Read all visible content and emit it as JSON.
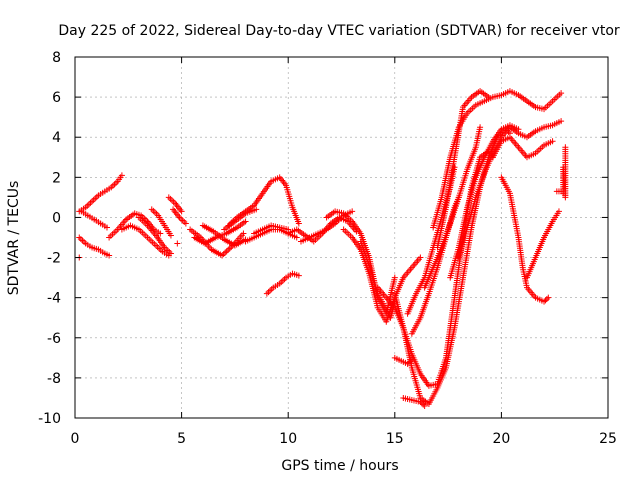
{
  "chart_data": {
    "type": "scatter",
    "title": "Day 225 of 2022, Sidereal Day-to-day VTEC variation (SDTVAR) for receiver vtor",
    "xlabel": "GPS time / hours",
    "ylabel": "SDTVAR / TECUs",
    "xlim": [
      0,
      25
    ],
    "ylim": [
      -10,
      8
    ],
    "xticks": [
      "0",
      "5",
      "10",
      "15",
      "20",
      "25"
    ],
    "yticks": [
      "-10",
      "-8",
      "-6",
      "-4",
      "-2",
      "0",
      "2",
      "4",
      "6",
      "8"
    ],
    "grid": true,
    "marker": "+",
    "color": "#ff0000",
    "series": [
      {
        "x": [
          0.2,
          0.5,
          0.8,
          1.1,
          1.4,
          1.7,
          2.0,
          2.2
        ],
        "y": [
          0.3,
          0.5,
          0.8,
          1.1,
          1.3,
          1.5,
          1.8,
          2.1
        ]
      },
      {
        "x": [
          0.2,
          0.5,
          0.8,
          1.1,
          1.4,
          1.6
        ],
        "y": [
          -1.0,
          -1.3,
          -1.5,
          -1.6,
          -1.8,
          -1.9
        ]
      },
      {
        "x": [
          0.2
        ],
        "y": [
          -2.0
        ]
      },
      {
        "x": [
          0.3,
          0.6,
          0.9,
          1.2,
          1.5
        ],
        "y": [
          0.3,
          0.1,
          -0.1,
          -0.3,
          -0.5
        ]
      },
      {
        "x": [
          1.6,
          2.0,
          2.4,
          2.8,
          3.1,
          3.4,
          3.7,
          4.0
        ],
        "y": [
          -1.0,
          -0.6,
          -0.1,
          0.2,
          0.1,
          -0.2,
          -0.6,
          -0.8
        ]
      },
      {
        "x": [
          2.2,
          2.6,
          3.0,
          3.4,
          3.8,
          4.1,
          4.4
        ],
        "y": [
          -0.6,
          -0.4,
          -0.6,
          -1.0,
          -1.4,
          -1.7,
          -1.9
        ]
      },
      {
        "x": [
          3.0,
          3.4,
          3.8,
          4.2,
          4.5
        ],
        "y": [
          0.0,
          -0.4,
          -0.9,
          -1.5,
          -1.8
        ]
      },
      {
        "x": [
          3.6,
          3.9,
          4.2,
          4.5
        ],
        "y": [
          0.4,
          0.1,
          -0.4,
          -0.9
        ]
      },
      {
        "x": [
          4.4,
          4.7,
          5.0
        ],
        "y": [
          1.0,
          0.7,
          0.3
        ]
      },
      {
        "x": [
          4.6,
          4.9,
          5.2
        ],
        "y": [
          0.4,
          0.0,
          -0.3
        ]
      },
      {
        "x": [
          4.8
        ],
        "y": [
          -1.3
        ]
      },
      {
        "x": [
          5.4,
          5.9,
          6.4,
          6.9,
          7.4,
          7.9
        ],
        "y": [
          -0.6,
          -1.0,
          -1.6,
          -1.9,
          -1.4,
          -0.8
        ]
      },
      {
        "x": [
          5.6,
          6.1,
          6.6,
          7.1,
          7.6,
          8.0
        ],
        "y": [
          -1.0,
          -1.3,
          -1.0,
          -0.8,
          -0.5,
          -0.2
        ]
      },
      {
        "x": [
          6.0,
          6.5,
          7.0,
          7.5,
          8.0
        ],
        "y": [
          -0.4,
          -0.7,
          -1.1,
          -1.4,
          -1.1
        ]
      },
      {
        "x": [
          7.0,
          7.5,
          8.0,
          8.5
        ],
        "y": [
          -0.6,
          -0.2,
          0.2,
          0.4
        ]
      },
      {
        "x": [
          7.2,
          7.6,
          8.0,
          8.4,
          8.8,
          9.2,
          9.6,
          9.9,
          10.2,
          10.5
        ],
        "y": [
          -0.4,
          0.0,
          0.3,
          0.6,
          1.2,
          1.8,
          2.0,
          1.6,
          0.5,
          -0.3
        ]
      },
      {
        "x": [
          8.4,
          8.8,
          9.2,
          9.6,
          10.0
        ],
        "y": [
          -0.8,
          -0.6,
          -0.4,
          -0.5,
          -0.6
        ]
      },
      {
        "x": [
          8.0,
          8.4,
          8.8,
          9.2,
          9.6,
          10.0,
          10.4
        ],
        "y": [
          -1.2,
          -1.0,
          -0.8,
          -0.6,
          -0.6,
          -0.8,
          -1.0
        ]
      },
      {
        "x": [
          9.0,
          9.3,
          9.6,
          9.9,
          10.2,
          10.5
        ],
        "y": [
          -3.8,
          -3.5,
          -3.3,
          -3.0,
          -2.8,
          -2.9
        ]
      },
      {
        "x": [
          10.0,
          10.4,
          10.8,
          11.2,
          11.6,
          12.0,
          12.4,
          12.8,
          13.2
        ],
        "y": [
          -0.8,
          -0.6,
          -0.9,
          -1.2,
          -0.8,
          -0.3,
          0.0,
          -0.2,
          -0.7
        ]
      },
      {
        "x": [
          10.6,
          11.0,
          11.4,
          11.8,
          12.2,
          12.6,
          13.0
        ],
        "y": [
          -1.2,
          -1.0,
          -0.8,
          -0.6,
          -0.3,
          0.1,
          0.3
        ]
      },
      {
        "x": [
          11.8,
          12.2,
          12.6,
          13.0,
          13.4,
          13.8,
          14.2,
          14.6,
          15.0
        ],
        "y": [
          0.0,
          0.3,
          0.2,
          -0.2,
          -0.8,
          -2.0,
          -4.0,
          -4.8,
          -3.0
        ]
      },
      {
        "x": [
          12.6,
          13.0,
          13.4,
          13.8,
          14.2,
          14.6,
          15.0,
          15.4,
          15.8,
          16.2
        ],
        "y": [
          -0.6,
          -1.0,
          -1.6,
          -2.8,
          -4.5,
          -5.2,
          -4.0,
          -3.0,
          -2.5,
          -2.0
        ]
      },
      {
        "x": [
          13.4,
          13.8,
          14.2,
          14.6,
          14.8,
          15.0
        ],
        "y": [
          -1.2,
          -2.4,
          -3.8,
          -4.6,
          -5.0,
          -4.2
        ]
      },
      {
        "x": [
          14.2,
          14.6,
          15.0,
          15.4,
          15.8,
          16.2,
          16.6,
          17.0,
          17.4,
          17.8,
          18.2,
          18.6,
          19.0,
          19.4,
          19.6
        ],
        "y": [
          -3.5,
          -4.0,
          -4.5,
          -5.5,
          -6.8,
          -7.8,
          -8.4,
          -8.3,
          -7.0,
          -4.0,
          -1.0,
          1.5,
          3.0,
          3.3,
          3.0
        ]
      },
      {
        "x": [
          15.0,
          15.4,
          15.6,
          15.8
        ],
        "y": [
          -7.0,
          -7.2,
          -7.3,
          -7.1
        ]
      },
      {
        "x": [
          15.0,
          15.4,
          15.8,
          16.2,
          16.6,
          17.0,
          17.4,
          17.8,
          18.2,
          18.6,
          19.0,
          19.4,
          19.8,
          20.2,
          20.4
        ],
        "y": [
          -3.8,
          -5.5,
          -7.5,
          -9.0,
          -9.3,
          -8.5,
          -7.5,
          -5.5,
          -3.0,
          -0.5,
          1.5,
          3.0,
          4.0,
          4.4,
          4.2
        ]
      },
      {
        "x": [
          15.4,
          15.8,
          16.2,
          16.4
        ],
        "y": [
          -9.0,
          -9.1,
          -9.2,
          -9.4
        ]
      },
      {
        "x": [
          15.6,
          16.0,
          16.4,
          16.8,
          17.2,
          17.6,
          17.8
        ],
        "y": [
          -4.8,
          -3.8,
          -3.0,
          -1.5,
          0.0,
          1.5,
          2.5
        ]
      },
      {
        "x": [
          15.8,
          16.2,
          16.6,
          17.0,
          17.4,
          17.8,
          18.0
        ],
        "y": [
          -5.8,
          -5.0,
          -3.8,
          -2.5,
          -1.0,
          0.5,
          1.0
        ]
      },
      {
        "x": [
          16.4,
          16.8,
          17.2,
          17.6,
          18.0,
          18.4,
          18.8,
          19.0
        ],
        "y": [
          -3.5,
          -2.5,
          -1.5,
          -0.3,
          1.0,
          2.4,
          3.5,
          4.5
        ]
      },
      {
        "x": [
          16.8,
          17.2,
          17.6,
          18.0,
          18.4,
          18.8,
          19.2,
          19.6,
          20.0,
          20.4,
          20.8,
          21.2,
          21.6,
          22.0,
          22.4,
          22.8
        ],
        "y": [
          -0.5,
          1.0,
          3.0,
          4.5,
          5.2,
          5.6,
          5.8,
          6.0,
          6.1,
          6.3,
          6.1,
          5.8,
          5.5,
          5.4,
          5.8,
          6.2
        ]
      },
      {
        "x": [
          17.0,
          17.4,
          17.8,
          18.2,
          18.6,
          19.0,
          19.4
        ],
        "y": [
          -1.5,
          0.5,
          3.0,
          5.5,
          6.0,
          6.3,
          6.0
        ]
      },
      {
        "x": [
          17.6,
          18.0,
          18.4,
          18.8,
          19.2,
          19.6,
          20.0,
          20.4,
          20.8
        ],
        "y": [
          -3.0,
          -1.5,
          0.5,
          2.0,
          3.0,
          3.8,
          4.4,
          4.6,
          4.4
        ]
      },
      {
        "x": [
          18.0,
          18.4,
          18.8,
          19.2,
          19.6,
          20.0,
          20.4,
          20.8,
          21.2,
          21.6,
          22.0,
          22.4,
          22.8
        ],
        "y": [
          -2.0,
          -0.5,
          1.0,
          2.2,
          3.2,
          4.0,
          4.5,
          4.2,
          4.0,
          4.3,
          4.5,
          4.6,
          4.8
        ]
      },
      {
        "x": [
          19.6,
          20.0,
          20.4,
          20.8,
          21.2,
          21.6,
          22.0,
          22.4
        ],
        "y": [
          3.0,
          3.8,
          4.0,
          3.5,
          3.0,
          3.2,
          3.6,
          3.8
        ]
      },
      {
        "x": [
          20.0,
          20.4,
          20.8,
          21.0,
          21.2,
          21.6,
          22.0,
          22.2
        ],
        "y": [
          2.0,
          1.2,
          -1.0,
          -2.5,
          -3.5,
          -4.0,
          -4.2,
          -4.0
        ]
      },
      {
        "x": [
          21.2,
          21.6,
          22.0,
          22.4,
          22.7
        ],
        "y": [
          -3.0,
          -2.0,
          -1.0,
          -0.2,
          0.3
        ]
      },
      {
        "x": [
          22.6,
          22.8,
          22.9,
          22.9,
          23.0,
          23.0
        ],
        "y": [
          1.3,
          1.3,
          1.2,
          2.5,
          1.0,
          3.5
        ]
      }
    ]
  }
}
